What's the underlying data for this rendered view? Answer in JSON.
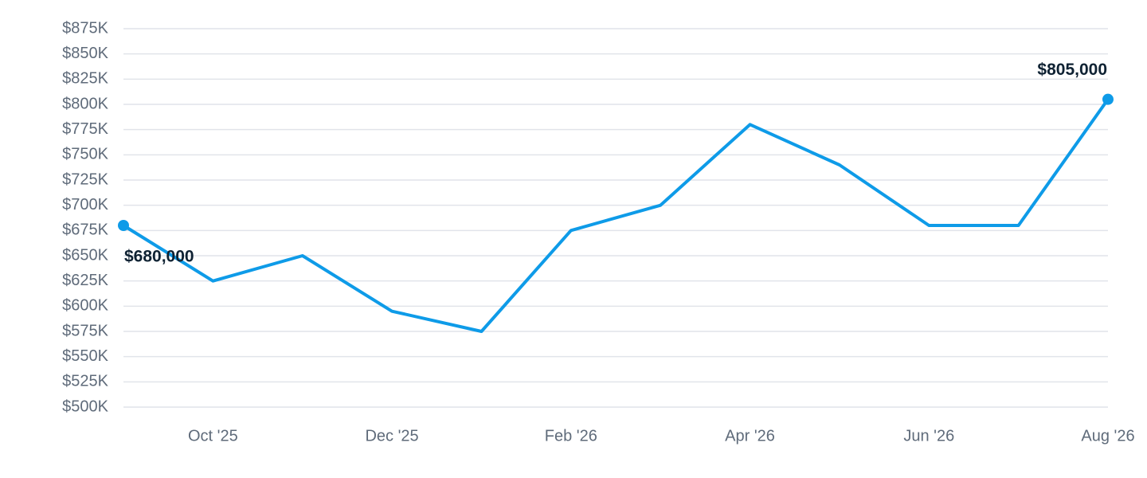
{
  "chart_data": {
    "type": "line",
    "categories": [
      null,
      "Oct '25",
      null,
      "Dec '25",
      null,
      "Feb '26",
      null,
      "Apr '26",
      null,
      "Jun '26",
      null,
      "Aug '26"
    ],
    "series": [
      {
        "color": "#0e9be8",
        "values": [
          680000,
          625000,
          650000,
          595000,
          575000,
          675000,
          700000,
          780000,
          740000,
          680000,
          680000,
          805000
        ],
        "value_labels": [
          "$680,000",
          null,
          null,
          null,
          null,
          null,
          null,
          null,
          null,
          null,
          null,
          "$805,000"
        ]
      }
    ],
    "ylim": [
      500000,
      875000
    ],
    "yticks": [
      {
        "value": 500000,
        "label": "$500K"
      },
      {
        "value": 525000,
        "label": "$525K"
      },
      {
        "value": 550000,
        "label": "$550K"
      },
      {
        "value": 575000,
        "label": "$575K"
      },
      {
        "value": 600000,
        "label": "$600K"
      },
      {
        "value": 625000,
        "label": "$625K"
      },
      {
        "value": 650000,
        "label": "$650K"
      },
      {
        "value": 675000,
        "label": "$675K"
      },
      {
        "value": 700000,
        "label": "$700K"
      },
      {
        "value": 725000,
        "label": "$725K"
      },
      {
        "value": 750000,
        "label": "$750K"
      },
      {
        "value": 775000,
        "label": "$775K"
      },
      {
        "value": 800000,
        "label": "$800K"
      },
      {
        "value": 825000,
        "label": "$825K"
      },
      {
        "value": 850000,
        "label": "$850K"
      },
      {
        "value": 875000,
        "label": "$875K"
      }
    ],
    "grid": true
  }
}
